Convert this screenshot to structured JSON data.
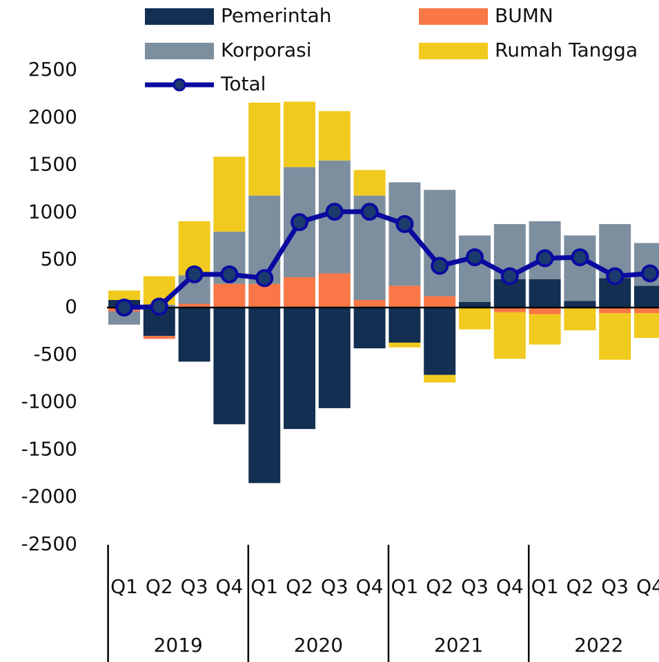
{
  "chart_data": {
    "type": "stacked_bar_line",
    "categories": [
      "Q1",
      "Q2",
      "Q3",
      "Q4",
      "Q1",
      "Q2",
      "Q3",
      "Q4",
      "Q1",
      "Q2",
      "Q3",
      "Q4",
      "Q1",
      "Q2",
      "Q3",
      "Q4"
    ],
    "groups": [
      "2019",
      "2020",
      "2021",
      "2022"
    ],
    "series": [
      {
        "name": "Pemerintah",
        "color": "#132f52",
        "values": [
          80,
          -300,
          -570,
          -1230,
          -1850,
          -1280,
          -1060,
          -430,
          -370,
          -710,
          60,
          300,
          300,
          70,
          310,
          230
        ]
      },
      {
        "name": "BUMN",
        "color": "#fa7747",
        "values": [
          -40,
          -30,
          40,
          250,
          250,
          320,
          360,
          80,
          230,
          120,
          0,
          -50,
          -70,
          -10,
          -60,
          -60
        ]
      },
      {
        "name": "Korporasi",
        "color": "#7d8f9e",
        "values": [
          -140,
          30,
          300,
          550,
          930,
          1160,
          1190,
          1100,
          1090,
          1120,
          700,
          580,
          610,
          690,
          570,
          450
        ]
      },
      {
        "name": "Rumah Tangga",
        "color": "#f0ca1e",
        "values": [
          100,
          300,
          570,
          790,
          980,
          690,
          520,
          270,
          -50,
          -80,
          -230,
          -490,
          -320,
          -230,
          -490,
          -260
        ]
      },
      {
        "name": "Total",
        "type": "line",
        "color": "#0a0aa0",
        "marker_color": "#1b3a6d",
        "values": [
          0,
          10,
          350,
          350,
          310,
          900,
          1010,
          1010,
          880,
          440,
          530,
          330,
          520,
          530,
          330,
          360
        ]
      }
    ],
    "ylim": [
      -2500,
      2500
    ],
    "yticks": [
      -2500,
      -2000,
      -1500,
      -1000,
      -500,
      0,
      500,
      1000,
      1500,
      2000,
      2500
    ]
  }
}
